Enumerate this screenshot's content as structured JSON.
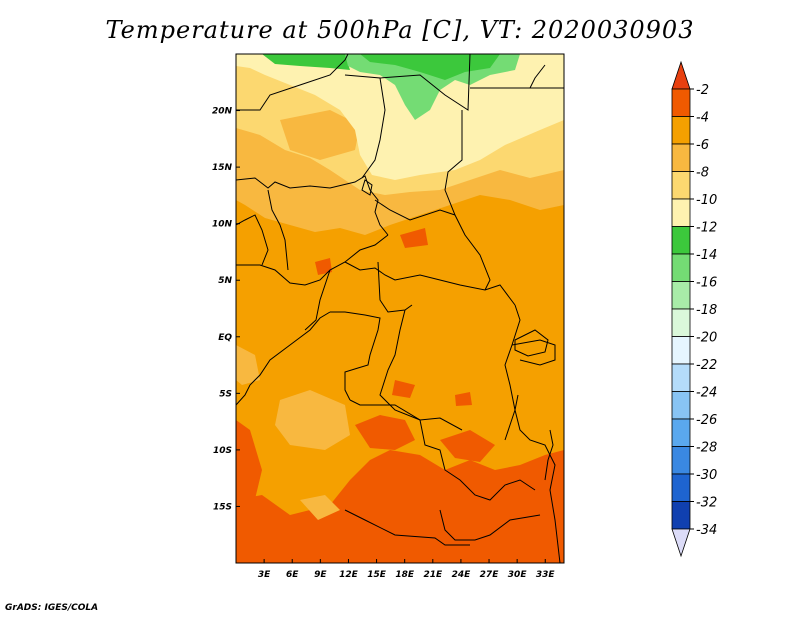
{
  "title": "Temperature at 500hPa [C], VT: 2020030903",
  "credit": "GrADS: IGES/COLA",
  "map": {
    "lon_range": [
      0,
      35
    ],
    "lat_range": [
      -20,
      25
    ],
    "x_ticks": [
      {
        "lon": 3,
        "label": "3E"
      },
      {
        "lon": 6,
        "label": "6E"
      },
      {
        "lon": 9,
        "label": "9E"
      },
      {
        "lon": 12,
        "label": "12E"
      },
      {
        "lon": 15,
        "label": "15E"
      },
      {
        "lon": 18,
        "label": "18E"
      },
      {
        "lon": 21,
        "label": "21E"
      },
      {
        "lon": 24,
        "label": "24E"
      },
      {
        "lon": 27,
        "label": "27E"
      },
      {
        "lon": 30,
        "label": "30E"
      },
      {
        "lon": 33,
        "label": "33E"
      }
    ],
    "y_ticks": [
      {
        "lat": 20,
        "label": "20N"
      },
      {
        "lat": 15,
        "label": "15N"
      },
      {
        "lat": 10,
        "label": "10N"
      },
      {
        "lat": 5,
        "label": "5N"
      },
      {
        "lat": 0,
        "label": "EQ"
      },
      {
        "lat": -5,
        "label": "5S"
      },
      {
        "lat": -10,
        "label": "10S"
      },
      {
        "lat": -15,
        "label": "15S"
      }
    ]
  },
  "colorbar": {
    "levels": [
      {
        "label": "-2",
        "color": "#f05a00"
      },
      {
        "label": "-4",
        "color": "#f5a000"
      },
      {
        "label": "-6",
        "color": "#f8b840"
      },
      {
        "label": "-8",
        "color": "#fcd870"
      },
      {
        "label": "-10",
        "color": "#fef2b0"
      },
      {
        "label": "-12",
        "color": "#3cc83c"
      },
      {
        "label": "-14",
        "color": "#74dc74"
      },
      {
        "label": "-16",
        "color": "#a8eca8"
      },
      {
        "label": "-18",
        "color": "#daf8da"
      },
      {
        "label": "-20",
        "color": "#e6f6ff"
      },
      {
        "label": "-22",
        "color": "#b4dcfa"
      },
      {
        "label": "-24",
        "color": "#88c4f4"
      },
      {
        "label": "-26",
        "color": "#5aa8ee"
      },
      {
        "label": "-28",
        "color": "#3a88e2"
      },
      {
        "label": "-30",
        "color": "#1e64d0"
      },
      {
        "label": "-32",
        "color": "#1040b0"
      },
      {
        "label": "-34",
        "color": "#0a1a7a"
      }
    ],
    "top_arrow_color": "#e84010",
    "bottom_arrow_color": "#dcdcf8"
  }
}
